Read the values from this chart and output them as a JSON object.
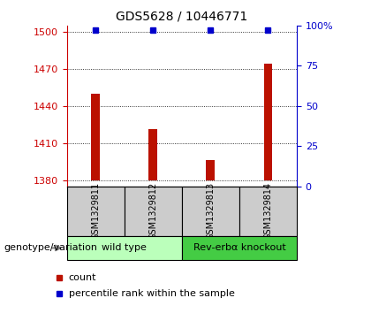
{
  "title": "GDS5628 / 10446771",
  "samples": [
    "GSM1329811",
    "GSM1329812",
    "GSM1329813",
    "GSM1329814"
  ],
  "bar_values": [
    1450,
    1421,
    1396,
    1474
  ],
  "bar_baseline": 1380,
  "bar_color": "#bb1100",
  "bar_width": 0.15,
  "dot_values": [
    97,
    97,
    97,
    97
  ],
  "dot_color": "#0000cc",
  "dot_size": 4,
  "ylim_left": [
    1375,
    1505
  ],
  "ylim_right": [
    0,
    100
  ],
  "yticks_left": [
    1380,
    1410,
    1440,
    1470,
    1500
  ],
  "yticks_right": [
    0,
    25,
    50,
    75,
    100
  ],
  "ytick_labels_right": [
    "0",
    "25",
    "50",
    "75",
    "100%"
  ],
  "groups": [
    {
      "label": "wild type",
      "indices": [
        0,
        1
      ],
      "color": "#bbffbb"
    },
    {
      "label": "Rev-erbα knockout",
      "indices": [
        2,
        3
      ],
      "color": "#44cc44"
    }
  ],
  "genotype_label": "genotype/variation",
  "legend_count_label": "count",
  "legend_percentile_label": "percentile rank within the sample",
  "tick_label_color_left": "#cc0000",
  "tick_label_color_right": "#0000cc",
  "tick_fontsize": 8,
  "title_fontsize": 10,
  "sample_fontsize": 7,
  "group_fontsize": 8,
  "legend_fontsize": 8,
  "genotype_fontsize": 8,
  "cell_bg": "#cccccc",
  "xlim": [
    -0.5,
    3.5
  ]
}
